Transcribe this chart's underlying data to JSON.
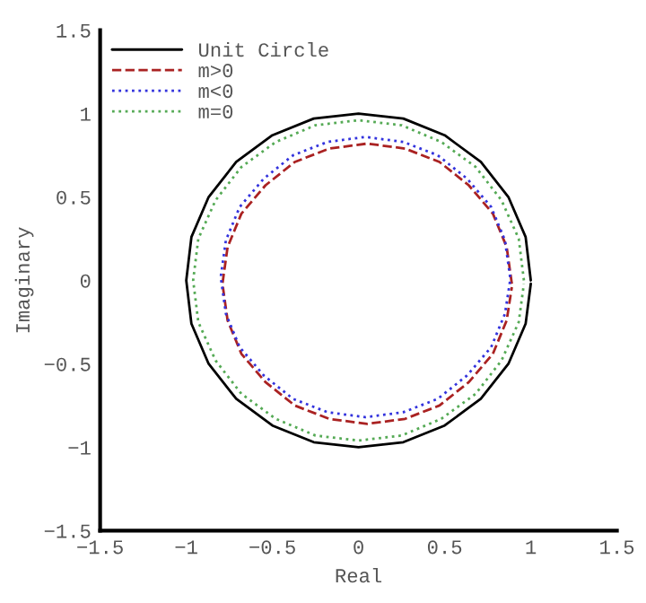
{
  "chart_data": {
    "type": "line",
    "xlabel": "Real",
    "ylabel": "Imaginary",
    "xlim": [
      -1.5,
      1.5
    ],
    "ylim": [
      -1.5,
      1.5
    ],
    "xticks": [
      -1.5,
      -1,
      -0.5,
      0,
      0.5,
      1,
      1.5
    ],
    "yticks": [
      -1.5,
      -1,
      -0.5,
      0,
      0.5,
      1,
      1.5
    ],
    "grid": false,
    "legend": "top left",
    "series": [
      {
        "name": "Unit Circle",
        "color": "#000000",
        "line_style": "solid",
        "x": [
          1,
          0.97,
          0.87,
          0.71,
          0.5,
          0.26,
          0,
          -0.26,
          -0.5,
          -0.71,
          -0.87,
          -0.97,
          -1,
          -0.97,
          -0.87,
          -0.71,
          -0.5,
          -0.26,
          0,
          0.26,
          0.5,
          0.71,
          0.87,
          0.97,
          1
        ],
        "values": [
          0,
          0.26,
          0.5,
          0.71,
          0.87,
          0.97,
          1,
          0.97,
          0.87,
          0.71,
          0.5,
          0.26,
          0,
          -0.26,
          -0.5,
          -0.71,
          -0.87,
          -0.97,
          -1,
          -0.97,
          -0.87,
          -0.71,
          -0.5,
          -0.26,
          -0.02
        ]
      },
      {
        "name": "m>0",
        "color": "#aa2222",
        "line_style": "dashed",
        "x": [
          0.89,
          0.86,
          0.78,
          0.64,
          0.47,
          0.27,
          0.05,
          -0.17,
          -0.37,
          -0.54,
          -0.68,
          -0.76,
          -0.79,
          -0.76,
          -0.68,
          -0.54,
          -0.37,
          -0.17,
          0.05,
          0.27,
          0.47,
          0.64,
          0.78,
          0.86,
          0.89
        ],
        "values": [
          -0.02,
          0.2,
          0.4,
          0.57,
          0.71,
          0.79,
          0.82,
          0.79,
          0.71,
          0.57,
          0.4,
          0.2,
          -0.02,
          -0.24,
          -0.44,
          -0.61,
          -0.75,
          -0.83,
          -0.86,
          -0.83,
          -0.75,
          -0.61,
          -0.44,
          -0.24,
          -0.04
        ]
      },
      {
        "name": "m<0",
        "color": "#3333dd",
        "line_style": "dotted",
        "x": [
          0.88,
          0.85,
          0.77,
          0.63,
          0.46,
          0.26,
          0.04,
          -0.18,
          -0.38,
          -0.55,
          -0.69,
          -0.77,
          -0.8,
          -0.77,
          -0.69,
          -0.55,
          -0.38,
          -0.18,
          0.04,
          0.26,
          0.46,
          0.63,
          0.77,
          0.85,
          0.88
        ],
        "values": [
          0.02,
          0.24,
          0.44,
          0.61,
          0.75,
          0.83,
          0.86,
          0.83,
          0.75,
          0.61,
          0.44,
          0.24,
          0.02,
          -0.2,
          -0.4,
          -0.57,
          -0.71,
          -0.79,
          -0.82,
          -0.79,
          -0.71,
          -0.57,
          -0.4,
          -0.2,
          0
        ]
      },
      {
        "name": "m=0",
        "color": "#55aa55",
        "line_style": "dotted",
        "x": [
          0.96,
          0.93,
          0.83,
          0.68,
          0.48,
          0.25,
          0,
          -0.25,
          -0.48,
          -0.68,
          -0.83,
          -0.93,
          -0.96,
          -0.93,
          -0.83,
          -0.68,
          -0.48,
          -0.25,
          0,
          0.25,
          0.48,
          0.68,
          0.83,
          0.93,
          0.96
        ],
        "values": [
          0,
          0.25,
          0.48,
          0.68,
          0.83,
          0.93,
          0.96,
          0.93,
          0.83,
          0.68,
          0.48,
          0.25,
          0,
          -0.25,
          -0.48,
          -0.68,
          -0.83,
          -0.93,
          -0.96,
          -0.93,
          -0.83,
          -0.68,
          -0.48,
          -0.25,
          -0.02
        ]
      }
    ]
  }
}
